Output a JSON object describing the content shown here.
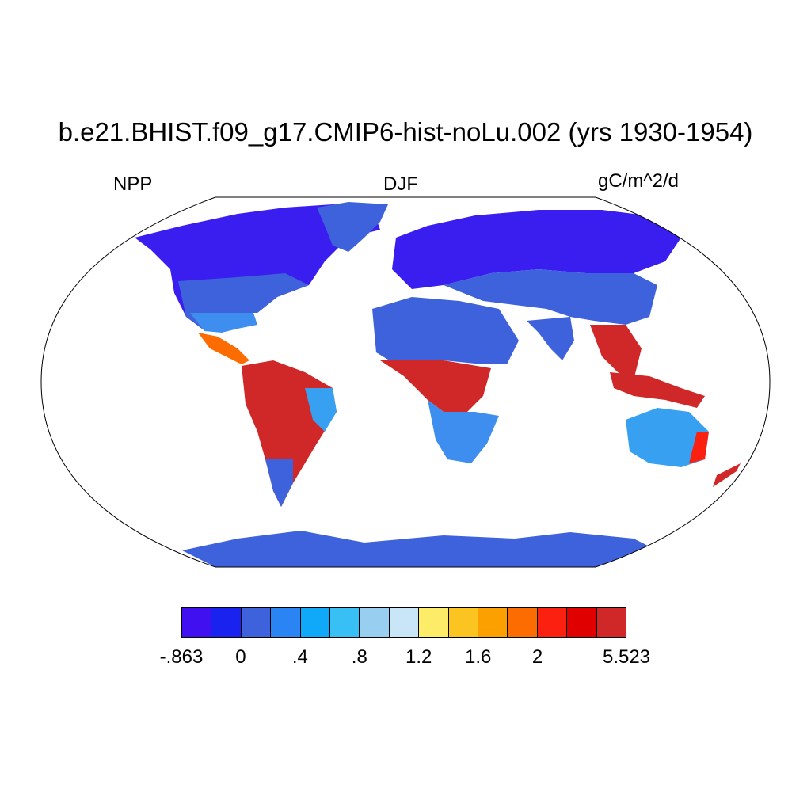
{
  "title": "b.e21.BHIST.f09_g17.CMIP6-hist-noLu.002 (yrs 1930-1954)",
  "left_label": "NPP",
  "center_label": "DJF",
  "right_label": "gC/m^2/d",
  "colorbar": {
    "colors": [
      "#4010f0",
      "#1a22f0",
      "#3e62dc",
      "#2a84f4",
      "#10a8f8",
      "#38c0f4",
      "#98cef0",
      "#c8e6f8",
      "#fcec68",
      "#fcc420",
      "#fca000",
      "#fc6c00",
      "#fc2010",
      "#e00000",
      "#d02828"
    ],
    "labels": [
      {
        "text": "-.863",
        "boundary": 0
      },
      {
        "text": "0",
        "boundary": 2
      },
      {
        "text": ".4",
        "boundary": 4
      },
      {
        "text": ".8",
        "boundary": 6
      },
      {
        "text": "1.2",
        "boundary": 8
      },
      {
        "text": "1.6",
        "boundary": 10
      },
      {
        "text": "2",
        "boundary": 12
      },
      {
        "text": "5.523",
        "boundary": 15
      }
    ]
  },
  "map": {
    "projection": "Robinson",
    "ocean_color": "#ffffff",
    "regions": [
      {
        "name": "arctic-north-america",
        "color": "#3a1ef0"
      },
      {
        "name": "greenland",
        "color": "#3e62dc"
      },
      {
        "name": "eurasia-north",
        "color": "#3a1ef0"
      },
      {
        "name": "antarctica",
        "color": "#3e62dc"
      },
      {
        "name": "amazon",
        "color": "#d02828"
      },
      {
        "name": "congo",
        "color": "#d02828"
      },
      {
        "name": "southeast-asia",
        "color": "#d02828"
      },
      {
        "name": "australia",
        "color": "#38a0f0"
      },
      {
        "name": "sahara",
        "color": "#3e62dc"
      }
    ]
  }
}
